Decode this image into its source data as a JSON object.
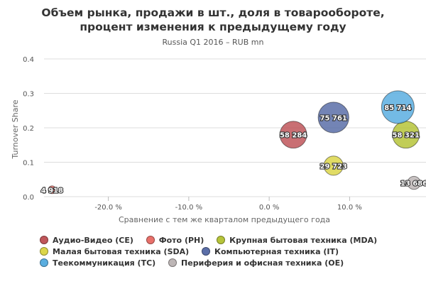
{
  "chart_data": {
    "type": "bubble",
    "title_lines": [
      "Объем рынка, продажи в шт., доля в товарообороте,",
      "процент изменения к предыдущему году"
    ],
    "subtitle": "Russia Q1 2016 – RUB mn",
    "xlabel": "Сравнение с тем же кварталом предыдущего года",
    "ylabel": "Turnover Share",
    "xlim": [
      -0.28,
      0.195
    ],
    "ylim": [
      0,
      0.4
    ],
    "x_ticks": [
      {
        "value": -0.2,
        "label": "-20.0 %"
      },
      {
        "value": -0.1,
        "label": "-10.0 %"
      },
      {
        "value": 0.0,
        "label": "0.0 %"
      },
      {
        "value": 0.1,
        "label": "10.0 %"
      }
    ],
    "y_ticks": [
      {
        "value": 0.0,
        "label": "0.0"
      },
      {
        "value": 0.1,
        "label": "0.1"
      },
      {
        "value": 0.2,
        "label": "0.2"
      },
      {
        "value": 0.3,
        "label": "0.3"
      },
      {
        "value": 0.4,
        "label": "0.4"
      }
    ],
    "grid": "horizontal",
    "legend_position": "bottom",
    "series": [
      {
        "name": "Аудио-Видео (CE)",
        "color": "#c0565a",
        "x": 0.03,
        "y": 0.18,
        "size": 58284,
        "label": "58 284"
      },
      {
        "name": "Фото (PH)",
        "color": "#e8706a",
        "x": -0.27,
        "y": 0.02,
        "size": 4918,
        "label": "4 918"
      },
      {
        "name": "Крупная бытовая техника (MDA)",
        "color": "#b6c43a",
        "x": 0.17,
        "y": 0.18,
        "size": 58321,
        "label": "58 321"
      },
      {
        "name": "Малая бытовая техника (SDA)",
        "color": "#dcd64a",
        "x": 0.08,
        "y": 0.09,
        "size": 29723,
        "label": "29 723"
      },
      {
        "name": "Компьютерная техника (IT)",
        "color": "#5b6fa8",
        "x": 0.08,
        "y": 0.23,
        "size": 75761,
        "label": "75 761"
      },
      {
        "name": "Теекоммуникация (TC)",
        "color": "#5aaee0",
        "x": 0.16,
        "y": 0.26,
        "size": 85714,
        "label": "85 714"
      },
      {
        "name": "Периферия и офисная техника (OE)",
        "color": "#bdb6b6",
        "x": 0.18,
        "y": 0.04,
        "size": 13686,
        "label": "13 686"
      }
    ]
  }
}
